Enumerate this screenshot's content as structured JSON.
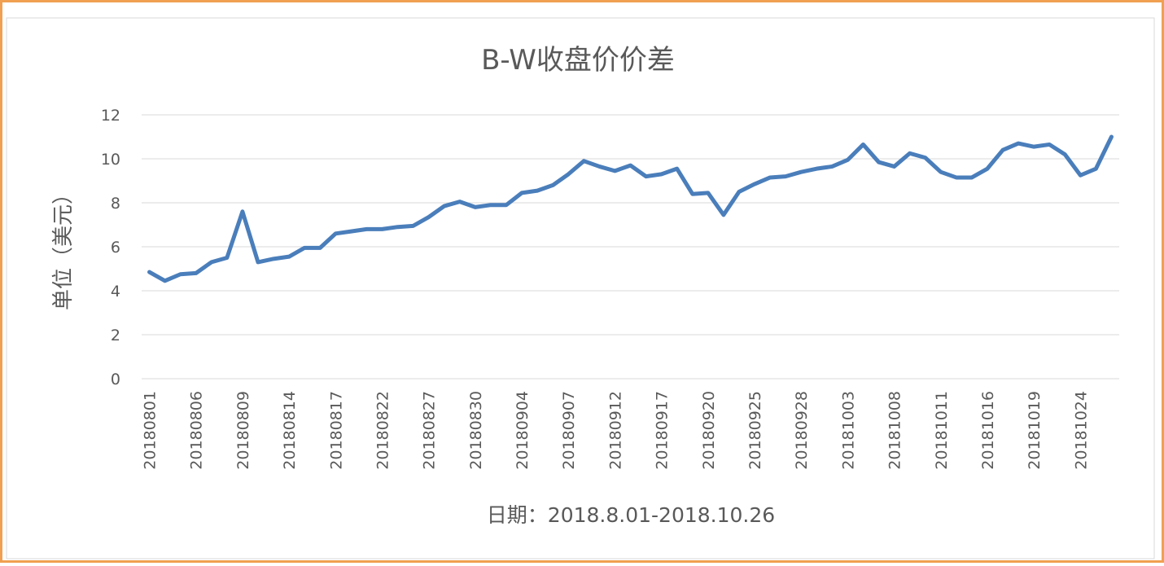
{
  "chart_data": {
    "type": "line",
    "title": "B-W收盘价价差",
    "y_label": "单位（美元）",
    "x_label": "日期：2018.8.01-2018.10.26",
    "categories": [
      "20180801",
      null,
      null,
      "20180806",
      null,
      null,
      "20180809",
      null,
      null,
      "20180814",
      null,
      null,
      "20180817",
      null,
      null,
      "20180822",
      null,
      null,
      "20180827",
      null,
      null,
      "20180830",
      null,
      null,
      "20180904",
      null,
      null,
      "20180907",
      null,
      null,
      "20180912",
      null,
      null,
      "20180917",
      null,
      null,
      "20180920",
      null,
      null,
      "20180925",
      null,
      null,
      "20180928",
      null,
      null,
      "20181003",
      null,
      null,
      "20181008",
      null,
      null,
      "20181011",
      null,
      null,
      "20181016",
      null,
      null,
      "20181019",
      null,
      null,
      "20181024",
      null,
      null
    ],
    "series": [
      {
        "name": "B-W收盘价价差",
        "color": "#4a7ebb",
        "values": [
          4.85,
          4.45,
          4.75,
          4.8,
          5.3,
          5.5,
          7.6,
          5.3,
          5.45,
          5.55,
          5.95,
          5.95,
          6.6,
          6.7,
          6.8,
          6.8,
          6.9,
          6.95,
          7.35,
          7.85,
          8.05,
          7.8,
          7.9,
          7.9,
          8.45,
          8.55,
          8.8,
          9.3,
          9.9,
          9.65,
          9.45,
          9.7,
          9.2,
          9.3,
          9.55,
          8.4,
          8.45,
          7.45,
          8.5,
          8.85,
          9.15,
          9.2,
          9.4,
          9.55,
          9.65,
          9.95,
          10.65,
          9.85,
          9.65,
          10.25,
          10.05,
          9.4,
          9.15,
          9.15,
          9.55,
          10.4,
          10.7,
          10.55,
          10.65,
          10.2,
          9.25,
          9.55,
          11.0
        ]
      }
    ],
    "ylim": [
      0,
      12
    ],
    "yticks": [
      0,
      2,
      4,
      6,
      8,
      10,
      12
    ],
    "grid": true
  }
}
